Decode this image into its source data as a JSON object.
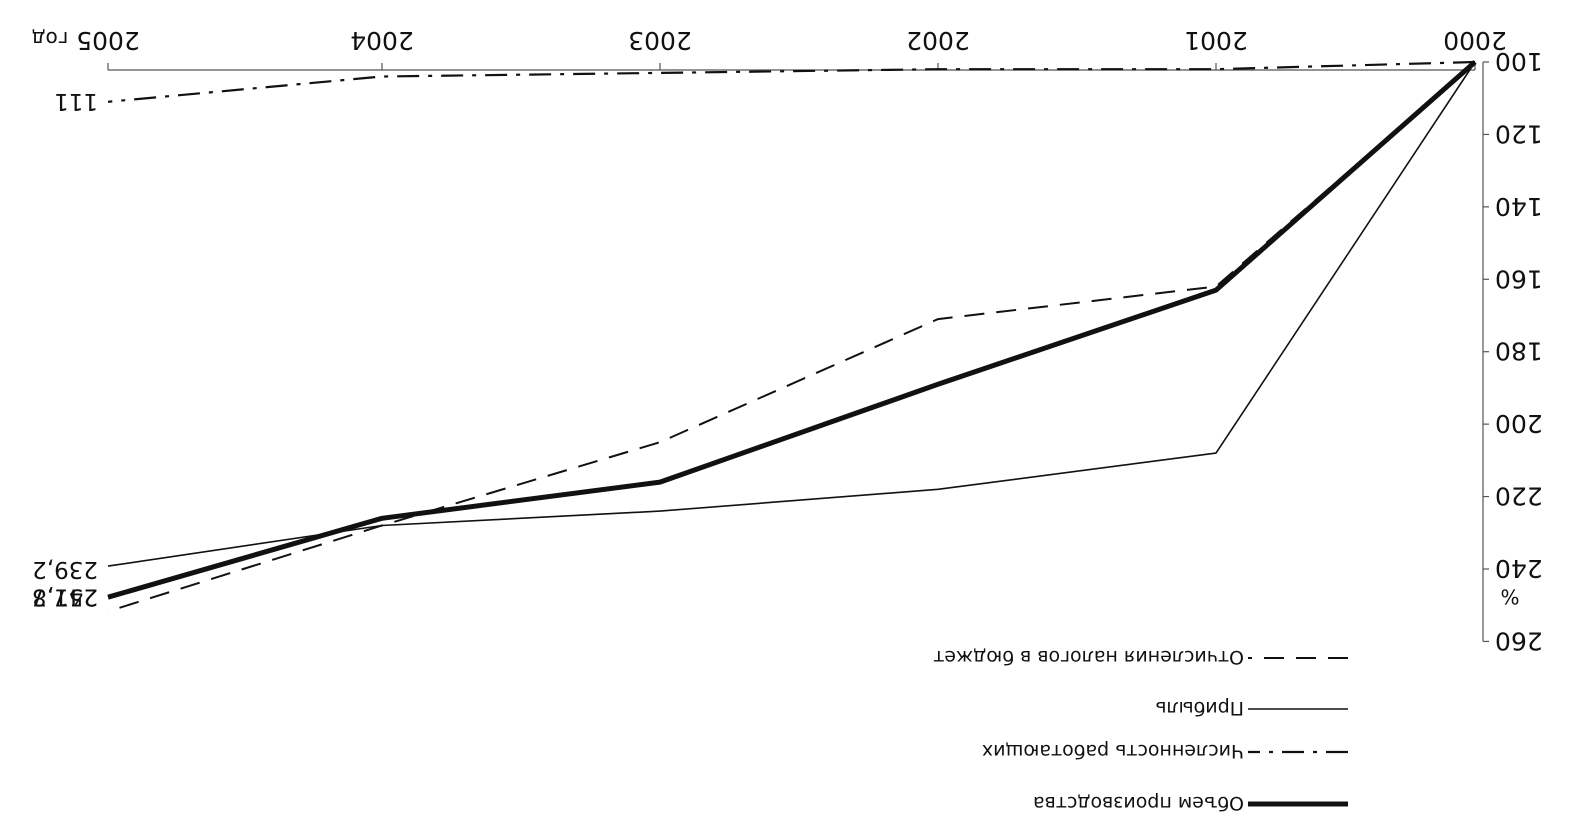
{
  "chart_data": {
    "type": "line",
    "x": [
      2000,
      2001,
      2002,
      2003,
      2004,
      2005
    ],
    "xlabel": "год",
    "ylabel": "%",
    "ylim": [
      100,
      260
    ],
    "yticks": [
      100,
      120,
      140,
      160,
      180,
      200,
      220,
      240,
      260
    ],
    "y_inverted": true,
    "image_rotated_180": true,
    "grid": false,
    "legend_position": "bottom",
    "series": [
      {
        "name": "Объем производства",
        "style": "thick",
        "values": [
          100,
          163,
          189,
          216,
          226,
          247.8
        ],
        "end_label": "247,8"
      },
      {
        "name": "Численность работающих",
        "style": "dash-dot",
        "values": [
          100,
          102,
          102,
          103,
          104,
          111
        ],
        "end_label": "111"
      },
      {
        "name": "Прибыль",
        "style": "solid",
        "values": [
          100,
          208,
          218,
          224,
          228,
          239.2
        ],
        "end_label": "239,2"
      },
      {
        "name": "Отчисления  налогов в бюджет",
        "style": "dashed",
        "values": [
          100,
          162,
          171,
          205,
          228,
          251.7
        ],
        "end_label": "251,7"
      }
    ]
  }
}
